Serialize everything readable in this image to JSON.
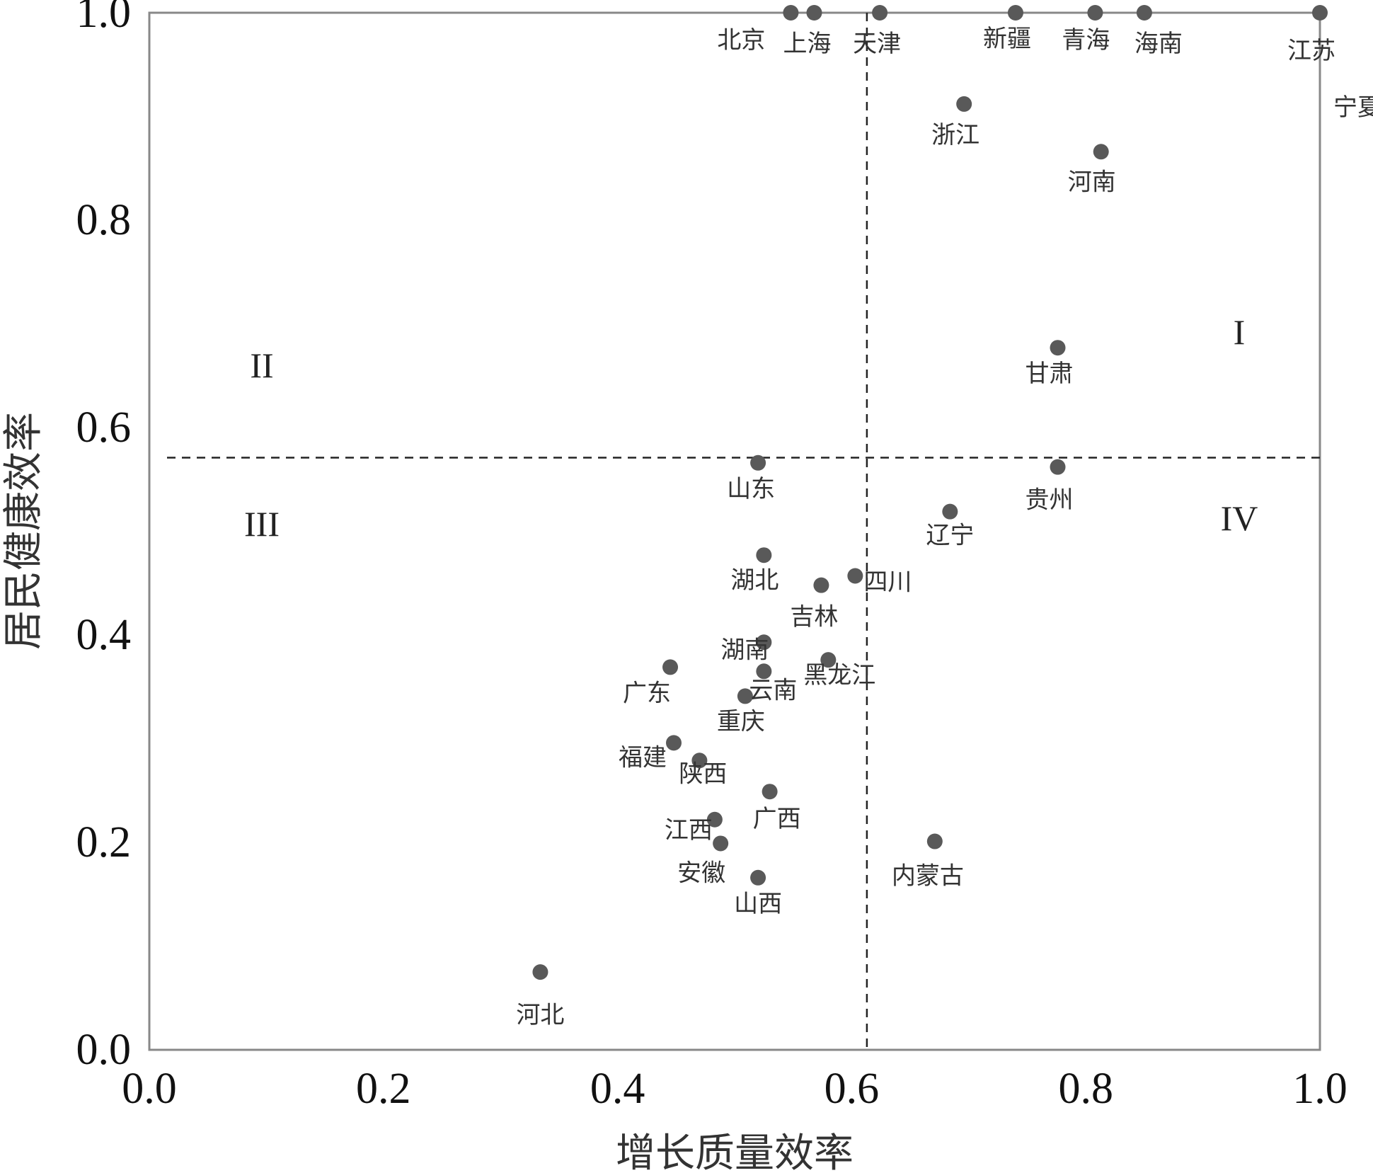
{
  "chart_data": {
    "type": "scatter",
    "xlabel": "增长质量效率",
    "ylabel": "居民健康效率",
    "xlim": [
      0,
      1
    ],
    "ylim": [
      0,
      1
    ],
    "x_ticks": [
      "0.0",
      "0.2",
      "0.4",
      "0.6",
      "0.8",
      "1.0"
    ],
    "y_ticks": [
      "0.0",
      "0.2",
      "0.4",
      "0.6",
      "0.8",
      "1.0"
    ],
    "grid": false,
    "marker_color": "#595959",
    "threshold_x": 0.613,
    "threshold_y": 0.571,
    "quadrant_labels": [
      "I",
      "II",
      "III",
      "IV"
    ],
    "points": [
      {
        "name": "北京",
        "x": 0.548,
        "y": 1.0
      },
      {
        "name": "上海",
        "x": 0.568,
        "y": 1.0
      },
      {
        "name": "天津",
        "x": 0.624,
        "y": 1.0
      },
      {
        "name": "新疆",
        "x": 0.74,
        "y": 1.0
      },
      {
        "name": "青海",
        "x": 0.808,
        "y": 1.0
      },
      {
        "name": "海南",
        "x": 0.85,
        "y": 1.0
      },
      {
        "name": "江苏",
        "x": 1.0,
        "y": 1.0
      },
      {
        "name": "宁夏",
        "x": 1.0,
        "y": 1.0
      },
      {
        "name": "浙江",
        "x": 0.696,
        "y": 0.912
      },
      {
        "name": "河南",
        "x": 0.813,
        "y": 0.866
      },
      {
        "name": "甘肃",
        "x": 0.776,
        "y": 0.677
      },
      {
        "name": "贵州",
        "x": 0.776,
        "y": 0.562
      },
      {
        "name": "山东",
        "x": 0.52,
        "y": 0.566
      },
      {
        "name": "辽宁",
        "x": 0.684,
        "y": 0.519
      },
      {
        "name": "湖北",
        "x": 0.525,
        "y": 0.477
      },
      {
        "name": "四川",
        "x": 0.603,
        "y": 0.457
      },
      {
        "name": "吉林",
        "x": 0.574,
        "y": 0.448
      },
      {
        "name": "湖南",
        "x": 0.525,
        "y": 0.393
      },
      {
        "name": "黑龙江",
        "x": 0.58,
        "y": 0.376
      },
      {
        "name": "广东",
        "x": 0.445,
        "y": 0.369
      },
      {
        "name": "云南",
        "x": 0.525,
        "y": 0.365
      },
      {
        "name": "重庆",
        "x": 0.509,
        "y": 0.341
      },
      {
        "name": "福建",
        "x": 0.448,
        "y": 0.296
      },
      {
        "name": "陕西",
        "x": 0.47,
        "y": 0.279
      },
      {
        "name": "广西",
        "x": 0.53,
        "y": 0.249
      },
      {
        "name": "江西",
        "x": 0.483,
        "y": 0.222
      },
      {
        "name": "安徽",
        "x": 0.488,
        "y": 0.199
      },
      {
        "name": "内蒙古",
        "x": 0.671,
        "y": 0.201
      },
      {
        "name": "山西",
        "x": 0.52,
        "y": 0.166
      },
      {
        "name": "河北",
        "x": 0.334,
        "y": 0.075
      }
    ]
  }
}
